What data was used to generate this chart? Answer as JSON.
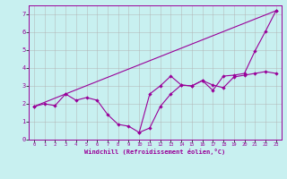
{
  "xlabel": "Windchill (Refroidissement éolien,°C)",
  "bg_color": "#c8f0f0",
  "line_color": "#990099",
  "grid_color": "#b0b0b0",
  "xlim": [
    -0.5,
    23.5
  ],
  "ylim": [
    0,
    7.5
  ],
  "xticks": [
    0,
    1,
    2,
    3,
    4,
    5,
    6,
    7,
    8,
    9,
    10,
    11,
    12,
    13,
    14,
    15,
    16,
    17,
    18,
    19,
    20,
    21,
    22,
    23
  ],
  "yticks": [
    0,
    1,
    2,
    3,
    4,
    5,
    6,
    7
  ],
  "line1_x": [
    0,
    1,
    2,
    3,
    4,
    5,
    6,
    7,
    8,
    9,
    10,
    11,
    12,
    13,
    14,
    15,
    16,
    17,
    18,
    19,
    20,
    21,
    22,
    23
  ],
  "line1_y": [
    1.85,
    2.0,
    1.9,
    2.55,
    2.2,
    2.35,
    2.2,
    1.4,
    0.85,
    0.75,
    0.4,
    0.65,
    1.85,
    2.55,
    3.05,
    3.0,
    3.3,
    3.05,
    2.9,
    3.5,
    3.6,
    3.7,
    3.8,
    3.7
  ],
  "line2_x": [
    0,
    3,
    23
  ],
  "line2_y": [
    1.85,
    2.55,
    7.2
  ],
  "line3_x": [
    10,
    11,
    12,
    13,
    14,
    15,
    16,
    17,
    18,
    19,
    20,
    21,
    22,
    23
  ],
  "line3_y": [
    0.4,
    2.55,
    3.0,
    3.55,
    3.05,
    3.0,
    3.3,
    2.75,
    3.55,
    3.6,
    3.7,
    4.95,
    6.05,
    7.2
  ]
}
